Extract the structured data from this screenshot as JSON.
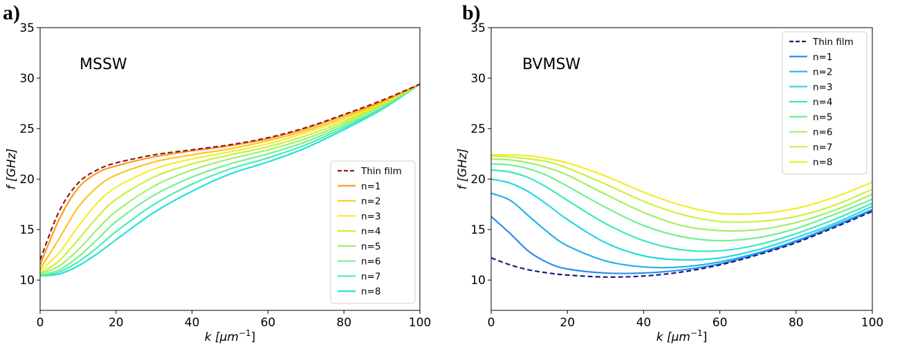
{
  "chart_data": [
    {
      "type": "line",
      "panel_label": "a)",
      "annotation": "MSSW",
      "xlabel_sym": "k",
      "xlabel_unit": "[μm",
      "xlabel_exp": "−1",
      "xlabel_close": "]",
      "ylabel_sym": "f",
      "ylabel_unit": "[GHz]",
      "xlim": [
        0,
        100
      ],
      "ylim": [
        7,
        35
      ],
      "xticks": [
        "0",
        "20",
        "40",
        "60",
        "80",
        "100"
      ],
      "yticks": [
        "10",
        "15",
        "20",
        "25",
        "30",
        "35"
      ],
      "grid": false,
      "legend_position": "lower-right",
      "x": [
        0,
        5,
        10,
        15,
        20,
        30,
        40,
        50,
        60,
        70,
        80,
        90,
        100
      ],
      "series": [
        {
          "name": "Thin film",
          "color": "#8b1a1a",
          "dashed": true,
          "values": [
            12.0,
            16.8,
            19.6,
            20.9,
            21.6,
            22.4,
            22.9,
            23.4,
            24.1,
            25.1,
            26.4,
            27.8,
            29.4
          ]
        },
        {
          "name": "n=1",
          "color": "#ff9a1f",
          "dashed": false,
          "values": [
            11.5,
            16.0,
            19.1,
            20.6,
            21.3,
            22.2,
            22.8,
            23.3,
            24.0,
            25.0,
            26.3,
            27.7,
            29.4
          ]
        },
        {
          "name": "n=2",
          "color": "#ffc21f",
          "dashed": false,
          "values": [
            11.1,
            14.1,
            17.2,
            19.2,
            20.4,
            21.7,
            22.4,
            23.0,
            23.8,
            24.8,
            26.1,
            27.6,
            29.4
          ]
        },
        {
          "name": "n=3",
          "color": "#f4ec2a",
          "dashed": false,
          "values": [
            10.9,
            12.7,
            15.3,
            17.6,
            19.2,
            21.0,
            22.0,
            22.7,
            23.5,
            24.6,
            25.9,
            27.5,
            29.4
          ]
        },
        {
          "name": "n=4",
          "color": "#c8f03a",
          "dashed": false,
          "values": [
            10.7,
            11.9,
            14.0,
            16.2,
            18.0,
            20.2,
            21.5,
            22.4,
            23.2,
            24.3,
            25.7,
            27.4,
            29.4
          ]
        },
        {
          "name": "n=5",
          "color": "#9ef06a",
          "dashed": false,
          "values": [
            10.6,
            11.4,
            13.0,
            15.0,
            16.8,
            19.3,
            20.9,
            22.0,
            22.9,
            24.0,
            25.5,
            27.3,
            29.4
          ]
        },
        {
          "name": "n=6",
          "color": "#74f08e",
          "dashed": false,
          "values": [
            10.5,
            11.0,
            12.3,
            14.0,
            15.8,
            18.4,
            20.2,
            21.5,
            22.5,
            23.7,
            25.3,
            27.1,
            29.4
          ]
        },
        {
          "name": "n=7",
          "color": "#47ecb0",
          "dashed": false,
          "values": [
            10.4,
            10.8,
            11.8,
            13.2,
            14.8,
            17.5,
            19.5,
            21.0,
            22.1,
            23.4,
            25.1,
            27.0,
            29.4
          ]
        },
        {
          "name": "n=8",
          "color": "#22e2dc",
          "dashed": false,
          "values": [
            10.4,
            10.6,
            11.4,
            12.6,
            14.0,
            16.7,
            18.8,
            20.5,
            21.7,
            23.1,
            24.9,
            26.9,
            29.4
          ]
        }
      ]
    },
    {
      "type": "line",
      "panel_label": "b)",
      "annotation": "BVMSW",
      "xlabel_sym": "k",
      "xlabel_unit": "[μm",
      "xlabel_exp": "−1",
      "xlabel_close": "]",
      "ylabel_sym": "f",
      "ylabel_unit": "[GHz]",
      "xlim": [
        0,
        100
      ],
      "ylim": [
        7,
        35
      ],
      "xticks": [
        "0",
        "20",
        "40",
        "60",
        "80",
        "100"
      ],
      "yticks": [
        "10",
        "15",
        "20",
        "25",
        "30",
        "35"
      ],
      "grid": false,
      "legend_position": "upper-right",
      "x": [
        0,
        5,
        10,
        15,
        20,
        30,
        40,
        50,
        60,
        70,
        80,
        90,
        100
      ],
      "series": [
        {
          "name": "Thin film",
          "color": "#1a1a7a",
          "dashed": true,
          "values": [
            12.2,
            11.5,
            11.0,
            10.7,
            10.5,
            10.3,
            10.4,
            10.8,
            11.5,
            12.5,
            13.7,
            15.2,
            16.8
          ]
        },
        {
          "name": "n=1",
          "color": "#2a8cf0",
          "dashed": false,
          "values": [
            16.3,
            14.6,
            12.8,
            11.7,
            11.1,
            10.7,
            10.7,
            11.0,
            11.6,
            12.6,
            13.8,
            15.3,
            16.9
          ]
        },
        {
          "name": "n=2",
          "color": "#20b0f0",
          "dashed": false,
          "values": [
            18.6,
            17.9,
            16.3,
            14.7,
            13.4,
            11.9,
            11.3,
            11.3,
            11.8,
            12.7,
            13.9,
            15.4,
            17.0
          ]
        },
        {
          "name": "n=3",
          "color": "#22d8e0",
          "dashed": false,
          "values": [
            20.0,
            19.6,
            18.7,
            17.4,
            16.0,
            13.7,
            12.4,
            12.0,
            12.2,
            13.0,
            14.2,
            15.6,
            17.3
          ]
        },
        {
          "name": "n=4",
          "color": "#3ae8c0",
          "dashed": false,
          "values": [
            20.9,
            20.7,
            20.1,
            19.1,
            17.9,
            15.6,
            13.9,
            13.0,
            12.9,
            13.5,
            14.6,
            16.0,
            17.6
          ]
        },
        {
          "name": "n=5",
          "color": "#6ef08e",
          "dashed": false,
          "values": [
            21.5,
            21.4,
            21.0,
            20.3,
            19.3,
            17.2,
            15.4,
            14.3,
            13.9,
            14.2,
            15.1,
            16.5,
            18.0
          ]
        },
        {
          "name": "n=6",
          "color": "#a0f064",
          "dashed": false,
          "values": [
            22.0,
            21.9,
            21.6,
            21.1,
            20.4,
            18.5,
            16.7,
            15.4,
            14.9,
            15.0,
            15.7,
            16.9,
            18.5
          ]
        },
        {
          "name": "n=7",
          "color": "#cbf03a",
          "dashed": false,
          "values": [
            22.3,
            22.2,
            22.0,
            21.7,
            21.1,
            19.5,
            17.8,
            16.5,
            15.8,
            15.8,
            16.3,
            17.4,
            19.0
          ]
        },
        {
          "name": "n=8",
          "color": "#eef020",
          "dashed": false,
          "values": [
            22.4,
            22.4,
            22.3,
            22.0,
            21.6,
            20.3,
            18.7,
            17.4,
            16.6,
            16.6,
            17.1,
            18.2,
            19.7
          ]
        }
      ]
    }
  ]
}
